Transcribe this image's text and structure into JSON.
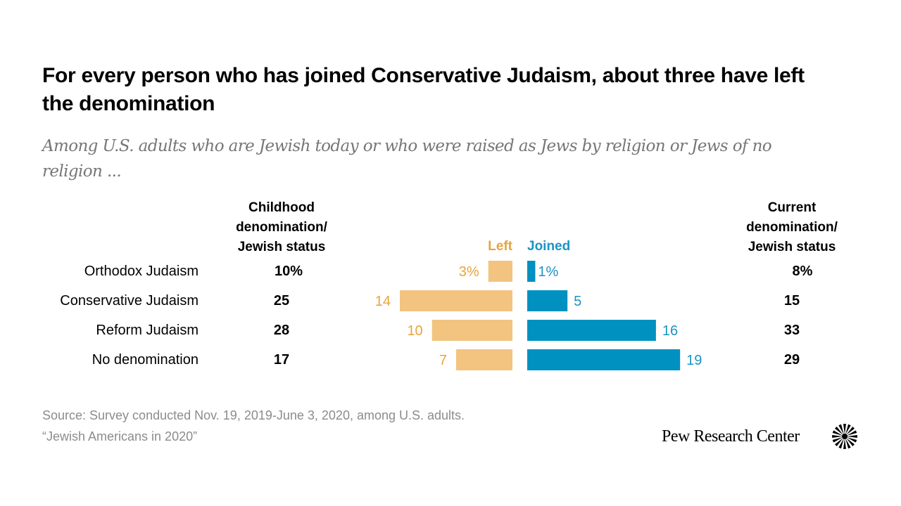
{
  "header": {
    "title": "For every person who has joined Conservative Judaism, about three have left the denomination",
    "subtitle": "Among U.S. adults who are Jewish today or who were raised as Jews by religion or Jews of no religion ..."
  },
  "columns": {
    "childhood": [
      "Childhood",
      "denomination/",
      "Jewish status"
    ],
    "current": [
      "Current",
      "denomination/",
      "Jewish status"
    ]
  },
  "legend": {
    "left_label": "Left",
    "joined_label": "Joined",
    "left_color": "#f2c480",
    "left_text_color": "#e8a43c",
    "joined_color": "#0091c1",
    "joined_text_color": "#1b94c4"
  },
  "chart_data": {
    "type": "bar",
    "orientation": "horizontal-diverging",
    "title": "For every person who has joined Conservative Judaism, about three have left the denomination",
    "subtitle": "Among U.S. adults who are Jewish today or who were raised as Jews by religion or Jews of no religion ...",
    "categories": [
      "Orthodox Judaism",
      "Conservative Judaism",
      "Reform Judaism",
      "No denomination"
    ],
    "childhood": [
      10,
      25,
      28,
      17
    ],
    "childhood_labels": [
      "10%",
      "25",
      "28",
      "17"
    ],
    "current": [
      8,
      15,
      33,
      29
    ],
    "current_labels": [
      "8%",
      "15",
      "33",
      "29"
    ],
    "series": [
      {
        "name": "Left",
        "values": [
          3,
          14,
          10,
          7
        ],
        "labels": [
          "3%",
          "14",
          "10",
          "7"
        ],
        "color": "#f2c480",
        "direction": "left"
      },
      {
        "name": "Joined",
        "values": [
          1,
          5,
          16,
          19
        ],
        "labels": [
          "1%",
          "5",
          "16",
          "19"
        ],
        "color": "#0091c1",
        "direction": "right"
      }
    ],
    "units": "percent",
    "grid": false
  },
  "footer": {
    "source": "Source: Survey conducted Nov. 19, 2019-June 3, 2020, among U.S. adults.",
    "report": "“Jewish Americans in 2020”",
    "brand": "Pew Research Center"
  }
}
